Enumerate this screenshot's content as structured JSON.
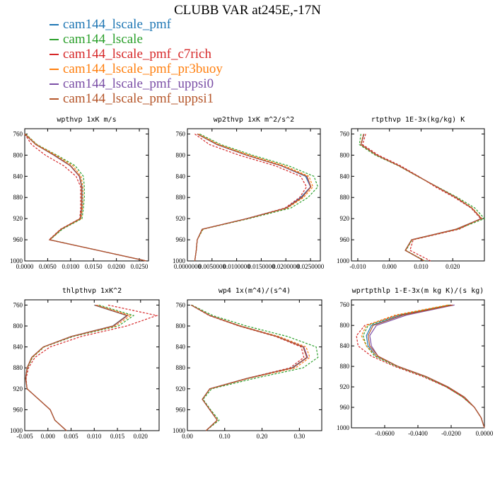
{
  "figure": {
    "title": "CLUBB VAR at245E,-17N"
  },
  "legend": [
    {
      "label": "cam144_lscale_pmf",
      "color": "#1f77b4",
      "dash": "solid"
    },
    {
      "label": "cam144_lscale",
      "color": "#2ca02c",
      "dash": "dashed"
    },
    {
      "label": "cam144_lscale_pmf_c7rich",
      "color": "#d62728",
      "dash": "dashed"
    },
    {
      "label": "cam144_lscale_pmf_pr3buoy",
      "color": "#ff7f0e",
      "dash": "dashed"
    },
    {
      "label": "cam144_lscale_pmf_uppsi0",
      "color": "#7b4fa6",
      "dash": "solid"
    },
    {
      "label": "cam144_lscale_pmf_uppsi1",
      "color": "#b5562a",
      "dash": "solid"
    }
  ],
  "chart_data": [
    {
      "type": "line",
      "title": "wpthvp  1xK m/s",
      "xlim": [
        0,
        0.027
      ],
      "ylim": [
        1000,
        750
      ],
      "xticks": [
        0,
        0.005,
        0.01,
        0.015,
        0.02,
        0.025
      ],
      "xtick_labels": [
        "0.0000",
        "0.0050",
        "0.0100",
        "0.0150",
        "0.0200",
        "0.0250"
      ],
      "yticks": [
        760,
        800,
        840,
        880,
        920,
        960,
        1000
      ],
      "y": [
        760,
        780,
        800,
        820,
        840,
        860,
        880,
        900,
        920,
        940,
        960,
        980,
        1000
      ],
      "series": [
        {
          "name": "cam144_lscale_pmf",
          "values": [
            0.0,
            0.0025,
            0.0065,
            0.01,
            0.012,
            0.0125,
            0.0125,
            0.0125,
            0.0122,
            0.008,
            0.0055,
            0.016,
            0.0265
          ]
        },
        {
          "name": "cam144_lscale",
          "values": [
            0.0002,
            0.0027,
            0.007,
            0.011,
            0.0128,
            0.013,
            0.013,
            0.0128,
            0.0125,
            0.0082,
            0.0055,
            0.016,
            0.0265
          ]
        },
        {
          "name": "cam144_lscale_pmf_c7rich",
          "values": [
            0.0,
            0.0015,
            0.0045,
            0.0085,
            0.0112,
            0.0122,
            0.0122,
            0.0122,
            0.012,
            0.0078,
            0.0053,
            0.016,
            0.0265
          ]
        },
        {
          "name": "cam144_lscale_pmf_pr3buoy",
          "values": [
            0.0001,
            0.0026,
            0.0068,
            0.0105,
            0.0123,
            0.0127,
            0.0127,
            0.0126,
            0.0123,
            0.008,
            0.0055,
            0.016,
            0.0265
          ]
        },
        {
          "name": "cam144_lscale_pmf_uppsi0",
          "values": [
            0.0,
            0.0024,
            0.0063,
            0.0099,
            0.0119,
            0.0124,
            0.0124,
            0.0124,
            0.0121,
            0.0079,
            0.0054,
            0.016,
            0.0265
          ]
        },
        {
          "name": "cam144_lscale_pmf_uppsi1",
          "values": [
            0.0,
            0.0024,
            0.0064,
            0.01,
            0.012,
            0.0124,
            0.0124,
            0.0124,
            0.0121,
            0.0079,
            0.0054,
            0.016,
            0.0265
          ]
        }
      ]
    },
    {
      "type": "line",
      "title": "wp2thvp  1xK m^2/s^2",
      "xlim": [
        0,
        0.027
      ],
      "ylim": [
        1000,
        750
      ],
      "xticks": [
        0,
        0.005,
        0.01,
        0.015,
        0.02,
        0.025
      ],
      "xtick_labels": [
        "0.0000000",
        "0.0050000",
        "0.0100000",
        "0.0150000",
        "0.0200000",
        "0.0250000"
      ],
      "yticks": [
        760,
        800,
        840,
        880,
        920,
        960,
        1000
      ],
      "y": [
        760,
        780,
        800,
        820,
        840,
        860,
        880,
        900,
        920,
        940,
        960,
        980,
        1000
      ],
      "series": [
        {
          "name": "cam144_lscale_pmf",
          "values": [
            0.002,
            0.006,
            0.012,
            0.019,
            0.024,
            0.025,
            0.023,
            0.02,
            0.012,
            0.003,
            0.002,
            0.0018,
            0.0015
          ]
        },
        {
          "name": "cam144_lscale",
          "values": [
            0.0025,
            0.0068,
            0.0132,
            0.0205,
            0.0257,
            0.0265,
            0.0245,
            0.021,
            0.0125,
            0.0032,
            0.002,
            0.0018,
            0.0015
          ]
        },
        {
          "name": "cam144_lscale_pmf_c7rich",
          "values": [
            0.0015,
            0.0045,
            0.0105,
            0.0178,
            0.023,
            0.0242,
            0.0228,
            0.0198,
            0.012,
            0.003,
            0.002,
            0.0018,
            0.0015
          ]
        },
        {
          "name": "cam144_lscale_pmf_pr3buoy",
          "values": [
            0.0022,
            0.0064,
            0.0126,
            0.0197,
            0.0247,
            0.0255,
            0.0236,
            0.0203,
            0.0122,
            0.0031,
            0.002,
            0.0018,
            0.0015
          ]
        },
        {
          "name": "cam144_lscale_pmf_uppsi0",
          "values": [
            0.002,
            0.006,
            0.012,
            0.019,
            0.0242,
            0.025,
            0.0232,
            0.0201,
            0.0121,
            0.003,
            0.002,
            0.0018,
            0.0015
          ]
        },
        {
          "name": "cam144_lscale_pmf_uppsi1",
          "values": [
            0.002,
            0.0061,
            0.0121,
            0.0191,
            0.0243,
            0.0251,
            0.0233,
            0.0201,
            0.0121,
            0.003,
            0.002,
            0.0018,
            0.0015
          ]
        }
      ]
    },
    {
      "type": "line",
      "title": "rtpthvp  1E-3x(kg/kg) K",
      "xlim": [
        -0.012,
        0.03
      ],
      "ylim": [
        1000,
        750
      ],
      "xticks": [
        -0.01,
        0,
        0.01,
        0.02
      ],
      "xtick_labels": [
        "-0.010",
        "0.000",
        "0.010",
        "0.020"
      ],
      "yticks": [
        760,
        800,
        840,
        880,
        920,
        960,
        1000
      ],
      "y": [
        760,
        780,
        800,
        820,
        840,
        860,
        880,
        900,
        920,
        940,
        960,
        980,
        1000
      ],
      "series": [
        {
          "name": "cam144_lscale_pmf",
          "values": [
            -0.008,
            -0.009,
            -0.004,
            0.003,
            0.009,
            0.015,
            0.021,
            0.026,
            0.029,
            0.021,
            0.007,
            0.005,
            0.011
          ]
        },
        {
          "name": "cam144_lscale",
          "values": [
            -0.009,
            -0.0095,
            -0.0045,
            0.0028,
            0.0088,
            0.0152,
            0.0215,
            0.027,
            0.03,
            0.0215,
            0.0072,
            0.0052,
            0.0112
          ]
        },
        {
          "name": "cam144_lscale_pmf_c7rich",
          "values": [
            -0.0075,
            -0.0085,
            -0.0035,
            0.0035,
            0.0092,
            0.0145,
            0.0205,
            0.0258,
            0.0288,
            0.022,
            0.0075,
            0.0065,
            0.013
          ]
        },
        {
          "name": "cam144_lscale_pmf_pr3buoy",
          "values": [
            -0.0082,
            -0.0091,
            -0.0041,
            0.0029,
            0.0089,
            0.015,
            0.0211,
            0.0262,
            0.0292,
            0.0212,
            0.0071,
            0.0051,
            0.0111
          ]
        },
        {
          "name": "cam144_lscale_pmf_uppsi0",
          "values": [
            -0.0081,
            -0.009,
            -0.004,
            0.003,
            0.009,
            0.015,
            0.021,
            0.026,
            0.029,
            0.021,
            0.007,
            0.005,
            0.011
          ]
        },
        {
          "name": "cam144_lscale_pmf_uppsi1",
          "values": [
            -0.0081,
            -0.009,
            -0.004,
            0.003,
            0.009,
            0.015,
            0.021,
            0.026,
            0.0291,
            0.021,
            0.007,
            0.005,
            0.011
          ]
        }
      ]
    },
    {
      "type": "line",
      "title": "thlpthvp  1xK^2",
      "xlim": [
        -0.005,
        0.024
      ],
      "ylim": [
        1000,
        750
      ],
      "xticks": [
        -0.005,
        0,
        0.005,
        0.01,
        0.015,
        0.02
      ],
      "xtick_labels": [
        "-0.005",
        "0.000",
        "0.005",
        "0.010",
        "0.015",
        "0.020"
      ],
      "yticks": [
        760,
        800,
        840,
        880,
        920,
        960,
        1000
      ],
      "y": [
        760,
        780,
        800,
        820,
        840,
        860,
        880,
        900,
        920,
        940,
        960,
        980,
        1000
      ],
      "series": [
        {
          "name": "cam144_lscale_pmf",
          "values": [
            0.01,
            0.017,
            0.014,
            0.005,
            -0.001,
            -0.0035,
            -0.0045,
            -0.0048,
            -0.0045,
            -0.002,
            0.0005,
            0.0015,
            0.004
          ]
        },
        {
          "name": "cam144_lscale",
          "values": [
            0.011,
            0.0185,
            0.0152,
            0.0055,
            -0.0008,
            -0.0033,
            -0.0044,
            -0.0048,
            -0.0045,
            -0.002,
            0.0005,
            0.0015,
            0.004
          ]
        },
        {
          "name": "cam144_lscale_pmf_c7rich",
          "values": [
            0.013,
            0.0235,
            0.017,
            0.0072,
            0.0005,
            -0.0028,
            -0.0042,
            -0.0047,
            -0.0045,
            -0.002,
            0.0005,
            0.0015,
            0.004
          ]
        },
        {
          "name": "cam144_lscale_pmf_pr3buoy",
          "values": [
            0.0105,
            0.0178,
            0.0146,
            0.0052,
            -0.0009,
            -0.0034,
            -0.0045,
            -0.0048,
            -0.0045,
            -0.002,
            0.0005,
            0.0015,
            0.004
          ]
        },
        {
          "name": "cam144_lscale_pmf_uppsi0",
          "values": [
            0.0102,
            0.0172,
            0.0142,
            0.0051,
            -0.001,
            -0.0035,
            -0.0045,
            -0.0048,
            -0.0045,
            -0.002,
            0.0005,
            0.0015,
            0.004
          ]
        },
        {
          "name": "cam144_lscale_pmf_uppsi1",
          "values": [
            0.0101,
            0.0171,
            0.0141,
            0.005,
            -0.001,
            -0.0035,
            -0.0045,
            -0.0048,
            -0.0045,
            -0.002,
            0.0005,
            0.0015,
            0.004
          ]
        }
      ]
    },
    {
      "type": "line",
      "title": "wp4  1x(m^4)/(s^4)",
      "xlim": [
        0,
        0.36
      ],
      "ylim": [
        1000,
        750
      ],
      "xticks": [
        0,
        0.1,
        0.2,
        0.3
      ],
      "xtick_labels": [
        "0.00",
        "0.10",
        "0.20",
        "0.30"
      ],
      "yticks": [
        760,
        800,
        840,
        880,
        920,
        960,
        1000
      ],
      "y": [
        760,
        780,
        800,
        820,
        840,
        860,
        880,
        900,
        920,
        940,
        960,
        980,
        1000
      ],
      "series": [
        {
          "name": "cam144_lscale_pmf",
          "values": [
            0.01,
            0.06,
            0.14,
            0.24,
            0.31,
            0.32,
            0.28,
            0.16,
            0.06,
            0.04,
            0.06,
            0.08,
            0.05
          ]
        },
        {
          "name": "cam144_lscale",
          "values": [
            0.012,
            0.068,
            0.158,
            0.268,
            0.345,
            0.35,
            0.31,
            0.18,
            0.065,
            0.042,
            0.062,
            0.085,
            0.05
          ]
        },
        {
          "name": "cam144_lscale_pmf_c7rich",
          "values": [
            0.01,
            0.058,
            0.138,
            0.236,
            0.305,
            0.312,
            0.275,
            0.16,
            0.06,
            0.04,
            0.06,
            0.08,
            0.05
          ]
        },
        {
          "name": "cam144_lscale_pmf_pr3buoy",
          "values": [
            0.01,
            0.061,
            0.144,
            0.245,
            0.318,
            0.328,
            0.29,
            0.165,
            0.061,
            0.04,
            0.06,
            0.081,
            0.05
          ]
        },
        {
          "name": "cam144_lscale_pmf_uppsi0",
          "values": [
            0.01,
            0.06,
            0.141,
            0.24,
            0.312,
            0.322,
            0.283,
            0.162,
            0.06,
            0.04,
            0.06,
            0.08,
            0.05
          ]
        },
        {
          "name": "cam144_lscale_pmf_uppsi1",
          "values": [
            0.01,
            0.06,
            0.14,
            0.239,
            0.31,
            0.32,
            0.282,
            0.161,
            0.06,
            0.04,
            0.06,
            0.08,
            0.05
          ]
        }
      ]
    },
    {
      "type": "line",
      "title": "wprtpthlp  1-E-3x(m kg K)/(s kg)",
      "xlim": [
        -0.08,
        0
      ],
      "ylim": [
        1000,
        750
      ],
      "xticks": [
        -0.06,
        -0.04,
        -0.02,
        0
      ],
      "xtick_labels": [
        "-0.0600",
        "-0.0400",
        "-0.0200",
        "0.0000"
      ],
      "yticks": [
        760,
        800,
        840,
        880,
        920,
        960,
        1000
      ],
      "y": [
        760,
        780,
        800,
        820,
        840,
        860,
        880,
        900,
        920,
        940,
        960,
        980,
        1000
      ],
      "series": [
        {
          "name": "cam144_lscale_pmf",
          "values": [
            -0.02,
            -0.05,
            -0.068,
            -0.071,
            -0.07,
            -0.065,
            -0.052,
            -0.035,
            -0.022,
            -0.012,
            -0.006,
            -0.002,
            0.0
          ]
        },
        {
          "name": "cam144_lscale",
          "values": [
            -0.021,
            -0.052,
            -0.07,
            -0.073,
            -0.071,
            -0.066,
            -0.053,
            -0.036,
            -0.023,
            -0.013,
            -0.006,
            -0.002,
            0.0
          ]
        },
        {
          "name": "cam144_lscale_pmf_c7rich",
          "values": [
            -0.02,
            -0.052,
            -0.072,
            -0.077,
            -0.076,
            -0.068,
            -0.054,
            -0.037,
            -0.023,
            -0.013,
            -0.006,
            -0.002,
            0.0
          ]
        },
        {
          "name": "cam144_lscale_pmf_pr3buoy",
          "values": [
            -0.022,
            -0.054,
            -0.071,
            -0.074,
            -0.071,
            -0.065,
            -0.052,
            -0.035,
            -0.022,
            -0.012,
            -0.006,
            -0.002,
            0.0
          ]
        },
        {
          "name": "cam144_lscale_pmf_uppsi0",
          "values": [
            -0.018,
            -0.047,
            -0.065,
            -0.069,
            -0.068,
            -0.064,
            -0.052,
            -0.035,
            -0.022,
            -0.012,
            -0.006,
            -0.002,
            0.0
          ]
        },
        {
          "name": "cam144_lscale_pmf_uppsi1",
          "values": [
            -0.019,
            -0.049,
            -0.067,
            -0.07,
            -0.069,
            -0.064,
            -0.052,
            -0.035,
            -0.022,
            -0.012,
            -0.006,
            -0.002,
            0.0
          ]
        }
      ]
    }
  ]
}
